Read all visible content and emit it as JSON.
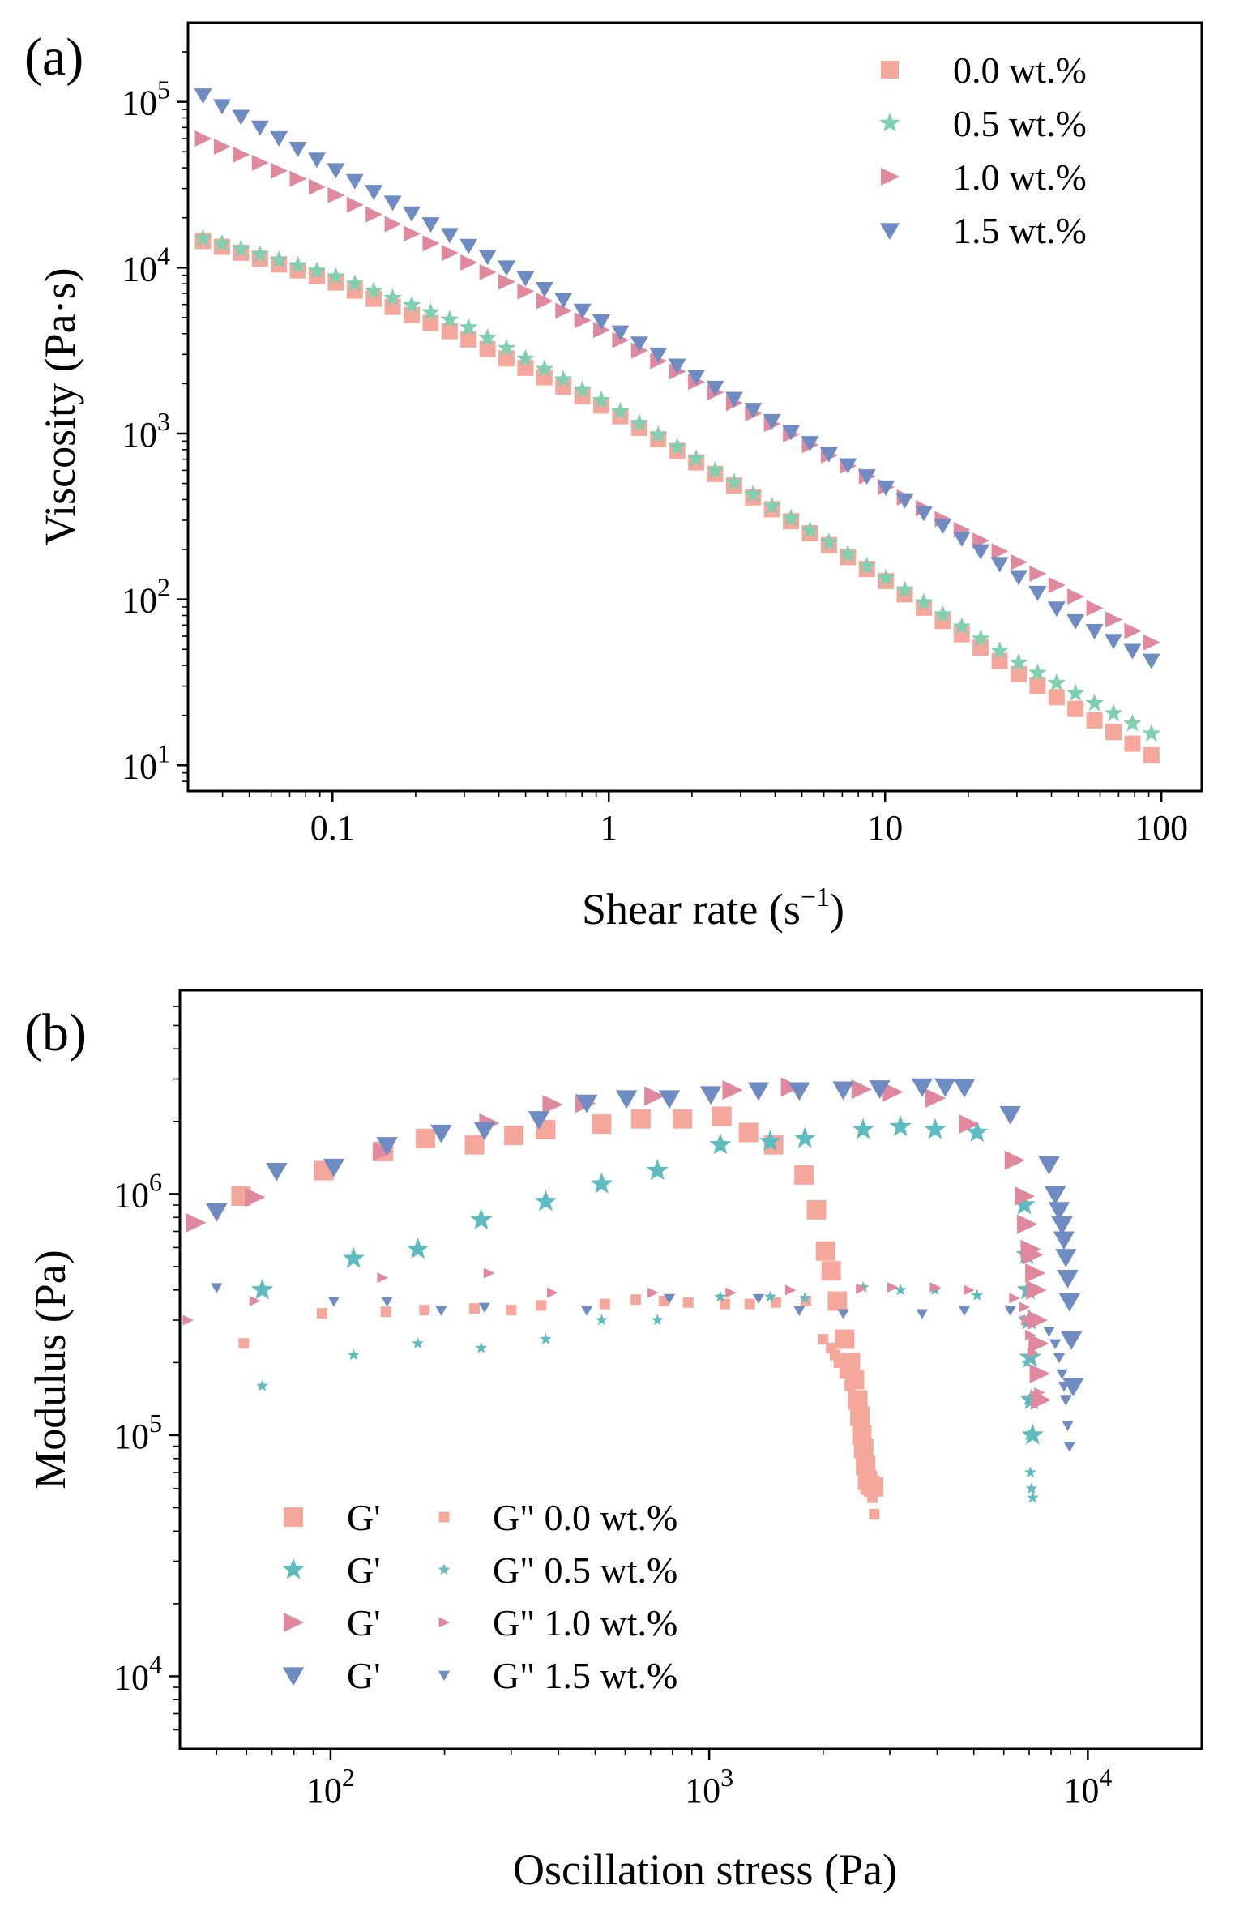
{
  "chart_data": [
    {
      "panel": "(a)",
      "type": "scatter",
      "xlabel": "Shear rate (s",
      "xlabel_sup": "−1",
      "xlabel_close": ")",
      "ylabel": "Viscosity (Pa·s)",
      "xscale": "log",
      "yscale": "log",
      "xlim": [
        0.03,
        140
      ],
      "ylim": [
        7,
        300000
      ],
      "xticks": [
        0.1,
        1,
        10,
        100
      ],
      "xtick_labels": [
        "0.1",
        "1",
        "10",
        "100"
      ],
      "yticks": [
        10,
        100,
        1000,
        10000,
        100000
      ],
      "ytick_base": "10",
      "ytick_exps": [
        "1",
        "2",
        "3",
        "4",
        "5"
      ],
      "legend_position": "top-right",
      "series": [
        {
          "name": "0.0 wt.%",
          "marker": "square",
          "color": "#F4A79A",
          "x_range": [
            0.034,
            92
          ],
          "n": 51,
          "y_at": [
            [
              0.034,
              14500
            ],
            [
              0.1,
              8300
            ],
            [
              0.3,
              3800
            ],
            [
              1,
              1400
            ],
            [
              3,
              460
            ],
            [
              10,
              130
            ],
            [
              30,
              36
            ],
            [
              92,
              11.5
            ]
          ]
        },
        {
          "name": "0.5 wt.%",
          "marker": "star",
          "color": "#7FCFB0",
          "x_range": [
            0.034,
            92
          ],
          "n": 51,
          "y_at": [
            [
              0.034,
              15000
            ],
            [
              0.1,
              9000
            ],
            [
              0.3,
              4500
            ],
            [
              1,
              1500
            ],
            [
              3,
              480
            ],
            [
              10,
              135
            ],
            [
              30,
              42
            ],
            [
              92,
              15.5
            ]
          ]
        },
        {
          "name": "1.0 wt.%",
          "marker": "triangle-right",
          "color": "#E0899E",
          "x_range": [
            0.034,
            92
          ],
          "n": 51,
          "y_at": [
            [
              0.034,
              60000
            ],
            [
              0.1,
              28000
            ],
            [
              1,
              4000
            ],
            [
              10,
              480
            ],
            [
              30,
              170
            ],
            [
              92,
              55
            ]
          ]
        },
        {
          "name": "1.5 wt.%",
          "marker": "triangle-down",
          "color": "#6E8CC2",
          "x_range": [
            0.034,
            92
          ],
          "n": 51,
          "y_at": [
            [
              0.034,
              110000
            ],
            [
              0.1,
              40000
            ],
            [
              1,
              4500
            ],
            [
              10,
              480
            ],
            [
              30,
              140
            ],
            [
              45,
              80
            ],
            [
              92,
              43
            ]
          ]
        }
      ]
    },
    {
      "panel": "(b)",
      "type": "scatter",
      "xlabel": "Oscillation stress (Pa)",
      "ylabel": "Modulus (Pa)",
      "xscale": "log",
      "yscale": "log",
      "xlim": [
        40,
        20000
      ],
      "ylim": [
        5000,
        7000000
      ],
      "xticks": [
        100,
        1000,
        10000
      ],
      "xtick_base": "10",
      "xtick_exps": [
        "2",
        "3",
        "4"
      ],
      "yticks": [
        10000,
        100000,
        1000000
      ],
      "ytick_base": "10",
      "ytick_exps": [
        "4",
        "5",
        "6"
      ],
      "legend_position": "lower-left",
      "series": [
        {
          "name": "G' 0.0 wt.%",
          "legend_label": "G'",
          "modulus": "G'",
          "marker": "square",
          "size": "large",
          "color": "#F4A79A",
          "points": [
            [
              58,
              980000
            ],
            [
              96,
              1250000
            ],
            [
              138,
              1500000
            ],
            [
              178,
              1700000
            ],
            [
              240,
              1600000
            ],
            [
              305,
              1750000
            ],
            [
              370,
              1850000
            ],
            [
              520,
              1950000
            ],
            [
              660,
              2050000
            ],
            [
              850,
              2050000
            ],
            [
              1080,
              2100000
            ],
            [
              1270,
              1800000
            ],
            [
              1480,
              1600000
            ],
            [
              1780,
              1200000
            ],
            [
              1920,
              860000
            ],
            [
              2030,
              580000
            ],
            [
              2100,
              480000
            ],
            [
              2180,
              360000
            ],
            [
              2280,
              250000
            ],
            [
              2360,
              200000
            ],
            [
              2420,
              170000
            ],
            [
              2470,
              140000
            ],
            [
              2500,
              120000
            ],
            [
              2530,
              100000
            ],
            [
              2560,
              88000
            ],
            [
              2590,
              75000
            ],
            [
              2620,
              65000
            ],
            [
              2660,
              62000
            ],
            [
              2720,
              61000
            ]
          ]
        },
        {
          "name": "G' 0.5 wt.%",
          "legend_label": "G'",
          "modulus": "G'",
          "marker": "star",
          "size": "large",
          "color": "#5EBBC0",
          "points": [
            [
              66,
              400000
            ],
            [
              115,
              540000
            ],
            [
              170,
              590000
            ],
            [
              250,
              780000
            ],
            [
              370,
              930000
            ],
            [
              520,
              1100000
            ],
            [
              730,
              1250000
            ],
            [
              1070,
              1600000
            ],
            [
              1450,
              1650000
            ],
            [
              1790,
              1700000
            ],
            [
              2550,
              1850000
            ],
            [
              3200,
              1900000
            ],
            [
              3950,
              1850000
            ],
            [
              5100,
              1800000
            ],
            [
              6800,
              900000
            ],
            [
              6900,
              560000
            ],
            [
              6950,
              400000
            ],
            [
              7000,
              300000
            ],
            [
              7050,
              210000
            ],
            [
              7100,
              140000
            ],
            [
              7150,
              100000
            ]
          ]
        },
        {
          "name": "G' 1.0 wt.%",
          "legend_label": "G'",
          "modulus": "G'",
          "marker": "triangle-right",
          "size": "large",
          "color": "#E0899E",
          "points": [
            [
              44,
              760000
            ],
            [
              63,
              970000
            ],
            [
              137,
              1500000
            ],
            [
              262,
              1970000
            ],
            [
              385,
              2350000
            ],
            [
              470,
              2380000
            ],
            [
              715,
              2550000
            ],
            [
              1150,
              2700000
            ],
            [
              1640,
              2780000
            ],
            [
              2520,
              2720000
            ],
            [
              3050,
              2650000
            ],
            [
              3950,
              2500000
            ],
            [
              4850,
              1950000
            ],
            [
              6400,
              1380000
            ],
            [
              6800,
              980000
            ],
            [
              6900,
              750000
            ],
            [
              7050,
              590000
            ],
            [
              7150,
              560000
            ],
            [
              7250,
              470000
            ],
            [
              7300,
              400000
            ],
            [
              7350,
              300000
            ],
            [
              7400,
              240000
            ],
            [
              7450,
              180000
            ],
            [
              7500,
              140000
            ]
          ]
        },
        {
          "name": "G' 1.5 wt.%",
          "legend_label": "G'",
          "modulus": "G'",
          "marker": "triangle-down",
          "size": "large",
          "color": "#6E8CC2",
          "points": [
            [
              50,
              850000
            ],
            [
              72,
              1250000
            ],
            [
              102,
              1300000
            ],
            [
              141,
              1600000
            ],
            [
              196,
              1800000
            ],
            [
              255,
              1850000
            ],
            [
              355,
              2050000
            ],
            [
              475,
              2400000
            ],
            [
              605,
              2500000
            ],
            [
              785,
              2500000
            ],
            [
              1010,
              2600000
            ],
            [
              1350,
              2700000
            ],
            [
              1730,
              2700000
            ],
            [
              2260,
              2720000
            ],
            [
              2820,
              2750000
            ],
            [
              3650,
              2800000
            ],
            [
              4200,
              2800000
            ],
            [
              4720,
              2780000
            ],
            [
              6240,
              2150000
            ],
            [
              7900,
              1330000
            ],
            [
              8200,
              1000000
            ],
            [
              8400,
              860000
            ],
            [
              8550,
              750000
            ],
            [
              8650,
              650000
            ],
            [
              8750,
              550000
            ],
            [
              8850,
              450000
            ],
            [
              8950,
              360000
            ],
            [
              9050,
              250000
            ],
            [
              9150,
              160000
            ]
          ]
        },
        {
          "name": "G\" 0.0 wt.%",
          "legend_label": "G\" 0.0 wt.%",
          "modulus": "G\"",
          "marker": "square",
          "size": "small",
          "color": "#F4A79A",
          "points": [
            [
              59,
              240000
            ],
            [
              95,
              320000
            ],
            [
              140,
              325000
            ],
            [
              177,
              330000
            ],
            [
              240,
              335000
            ],
            [
              300,
              330000
            ],
            [
              360,
              345000
            ],
            [
              530,
              350000
            ],
            [
              640,
              365000
            ],
            [
              760,
              360000
            ],
            [
              880,
              355000
            ],
            [
              1100,
              350000
            ],
            [
              1280,
              350000
            ],
            [
              1500,
              355000
            ],
            [
              1800,
              360000
            ],
            [
              2000,
              250000
            ],
            [
              2100,
              230000
            ],
            [
              2150,
              215000
            ],
            [
              2200,
              200000
            ],
            [
              2280,
              180000
            ],
            [
              2350,
              160000
            ],
            [
              2420,
              140000
            ],
            [
              2500,
              120000
            ],
            [
              2550,
              100000
            ],
            [
              2600,
              80000
            ],
            [
              2650,
              65000
            ],
            [
              2700,
              55000
            ],
            [
              2730,
              47000
            ]
          ]
        },
        {
          "name": "G\" 0.5 wt.%",
          "legend_label": "G\" 0.5 wt.%",
          "modulus": "G\"",
          "marker": "star",
          "size": "small",
          "color": "#5EBBC0",
          "points": [
            [
              66,
              160000
            ],
            [
              115,
              215000
            ],
            [
              170,
              240000
            ],
            [
              250,
              230000
            ],
            [
              370,
              250000
            ],
            [
              520,
              300000
            ],
            [
              730,
              300000
            ],
            [
              1070,
              375000
            ],
            [
              1450,
              375000
            ],
            [
              1790,
              370000
            ],
            [
              2550,
              410000
            ],
            [
              3200,
              400000
            ],
            [
              3950,
              400000
            ],
            [
              5100,
              380000
            ],
            [
              6800,
              300000
            ],
            [
              6900,
              200000
            ],
            [
              6950,
              140000
            ],
            [
              7000,
              100000
            ],
            [
              7050,
              70000
            ],
            [
              7100,
              60000
            ],
            [
              7150,
              55000
            ]
          ]
        },
        {
          "name": "G\" 1.0 wt.%",
          "legend_label": "G\" 1.0 wt.%",
          "modulus": "G\"",
          "marker": "triangle-right",
          "size": "small",
          "color": "#E0899E",
          "points": [
            [
              42,
              300000
            ],
            [
              63,
              360000
            ],
            [
              137,
              450000
            ],
            [
              262,
              470000
            ],
            [
              385,
              390000
            ],
            [
              710,
              390000
            ],
            [
              1140,
              390000
            ],
            [
              1640,
              400000
            ],
            [
              2520,
              405000
            ],
            [
              3050,
              410000
            ],
            [
              3950,
              410000
            ],
            [
              4850,
              400000
            ],
            [
              6400,
              370000
            ],
            [
              6800,
              340000
            ],
            [
              6900,
              300000
            ],
            [
              7050,
              260000
            ],
            [
              7150,
              220000
            ],
            [
              7300,
              180000
            ],
            [
              7450,
              150000
            ]
          ]
        },
        {
          "name": "G\" 1.5 wt.%",
          "legend_label": "G\" 1.5 wt.%",
          "modulus": "G\"",
          "marker": "triangle-down",
          "size": "small",
          "color": "#6E8CC2",
          "points": [
            [
              50,
              410000
            ],
            [
              102,
              360000
            ],
            [
              141,
              360000
            ],
            [
              196,
              330000
            ],
            [
              255,
              340000
            ],
            [
              475,
              330000
            ],
            [
              785,
              370000
            ],
            [
              1350,
              370000
            ],
            [
              1730,
              330000
            ],
            [
              2260,
              320000
            ],
            [
              3650,
              320000
            ],
            [
              4720,
              330000
            ],
            [
              6240,
              330000
            ],
            [
              7900,
              270000
            ],
            [
              8200,
              240000
            ],
            [
              8400,
              210000
            ],
            [
              8550,
              180000
            ],
            [
              8650,
              160000
            ],
            [
              8750,
              140000
            ],
            [
              8850,
              110000
            ],
            [
              8950,
              90000
            ]
          ]
        }
      ]
    }
  ]
}
